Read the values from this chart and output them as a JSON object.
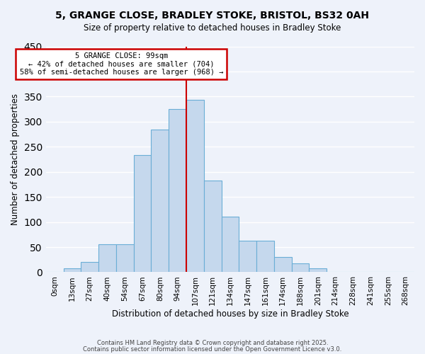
{
  "title": "5, GRANGE CLOSE, BRADLEY STOKE, BRISTOL, BS32 0AH",
  "subtitle": "Size of property relative to detached houses in Bradley Stoke",
  "xlabel": "Distribution of detached houses by size in Bradley Stoke",
  "ylabel": "Number of detached properties",
  "bar_color": "#c5d8ed",
  "bar_edge_color": "#6aaed6",
  "background_color": "#eef2fa",
  "grid_color": "#ffffff",
  "bin_labels": [
    "0sqm",
    "13sqm",
    "27sqm",
    "40sqm",
    "54sqm",
    "67sqm",
    "80sqm",
    "94sqm",
    "107sqm",
    "121sqm",
    "134sqm",
    "147sqm",
    "161sqm",
    "174sqm",
    "188sqm",
    "201sqm",
    "214sqm",
    "228sqm",
    "241sqm",
    "255sqm",
    "268sqm"
  ],
  "bar_values": [
    0,
    7,
    21,
    56,
    56,
    234,
    284,
    325,
    344,
    183,
    110,
    63,
    63,
    30,
    18,
    8,
    1,
    0,
    0,
    0,
    0
  ],
  "ylim": [
    0,
    450
  ],
  "yticks": [
    0,
    50,
    100,
    150,
    200,
    250,
    300,
    350,
    400,
    450
  ],
  "vline_x": 7.5,
  "vline_color": "#cc0000",
  "annotation_title": "5 GRANGE CLOSE: 99sqm",
  "annotation_line1": "← 42% of detached houses are smaller (704)",
  "annotation_line2": "58% of semi-detached houses are larger (968) →",
  "annotation_box_color": "#ffffff",
  "annotation_border_color": "#cc0000",
  "footer1": "Contains HM Land Registry data © Crown copyright and database right 2025.",
  "footer2": "Contains public sector information licensed under the Open Government Licence v3.0."
}
